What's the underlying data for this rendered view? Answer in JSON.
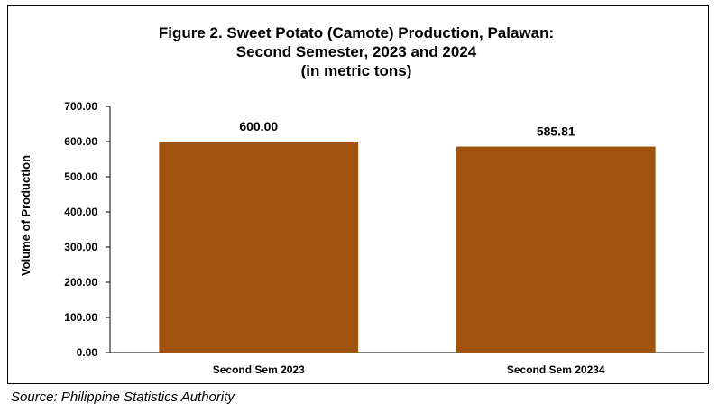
{
  "chart_data": {
    "type": "bar",
    "title_lines": [
      "Figure 2. Sweet Potato (Camote) Production, Palawan:",
      "Second Semester, 2023 and 2024",
      "(in metric tons)"
    ],
    "categories": [
      "Second Sem 2023",
      "Second Sem 20234"
    ],
    "values": [
      600.0,
      585.81
    ],
    "data_labels": [
      "600.00",
      "585.81"
    ],
    "ylabel": "Volume of Production",
    "xlabel": "",
    "ylim": [
      0,
      700
    ],
    "yticks": [
      "0.00",
      "100.00",
      "200.00",
      "300.00",
      "400.00",
      "500.00",
      "600.00",
      "700.00"
    ],
    "bar_color": "#A0520F",
    "grid": false
  },
  "source_note": "Source: Philippine Statistics Authority"
}
